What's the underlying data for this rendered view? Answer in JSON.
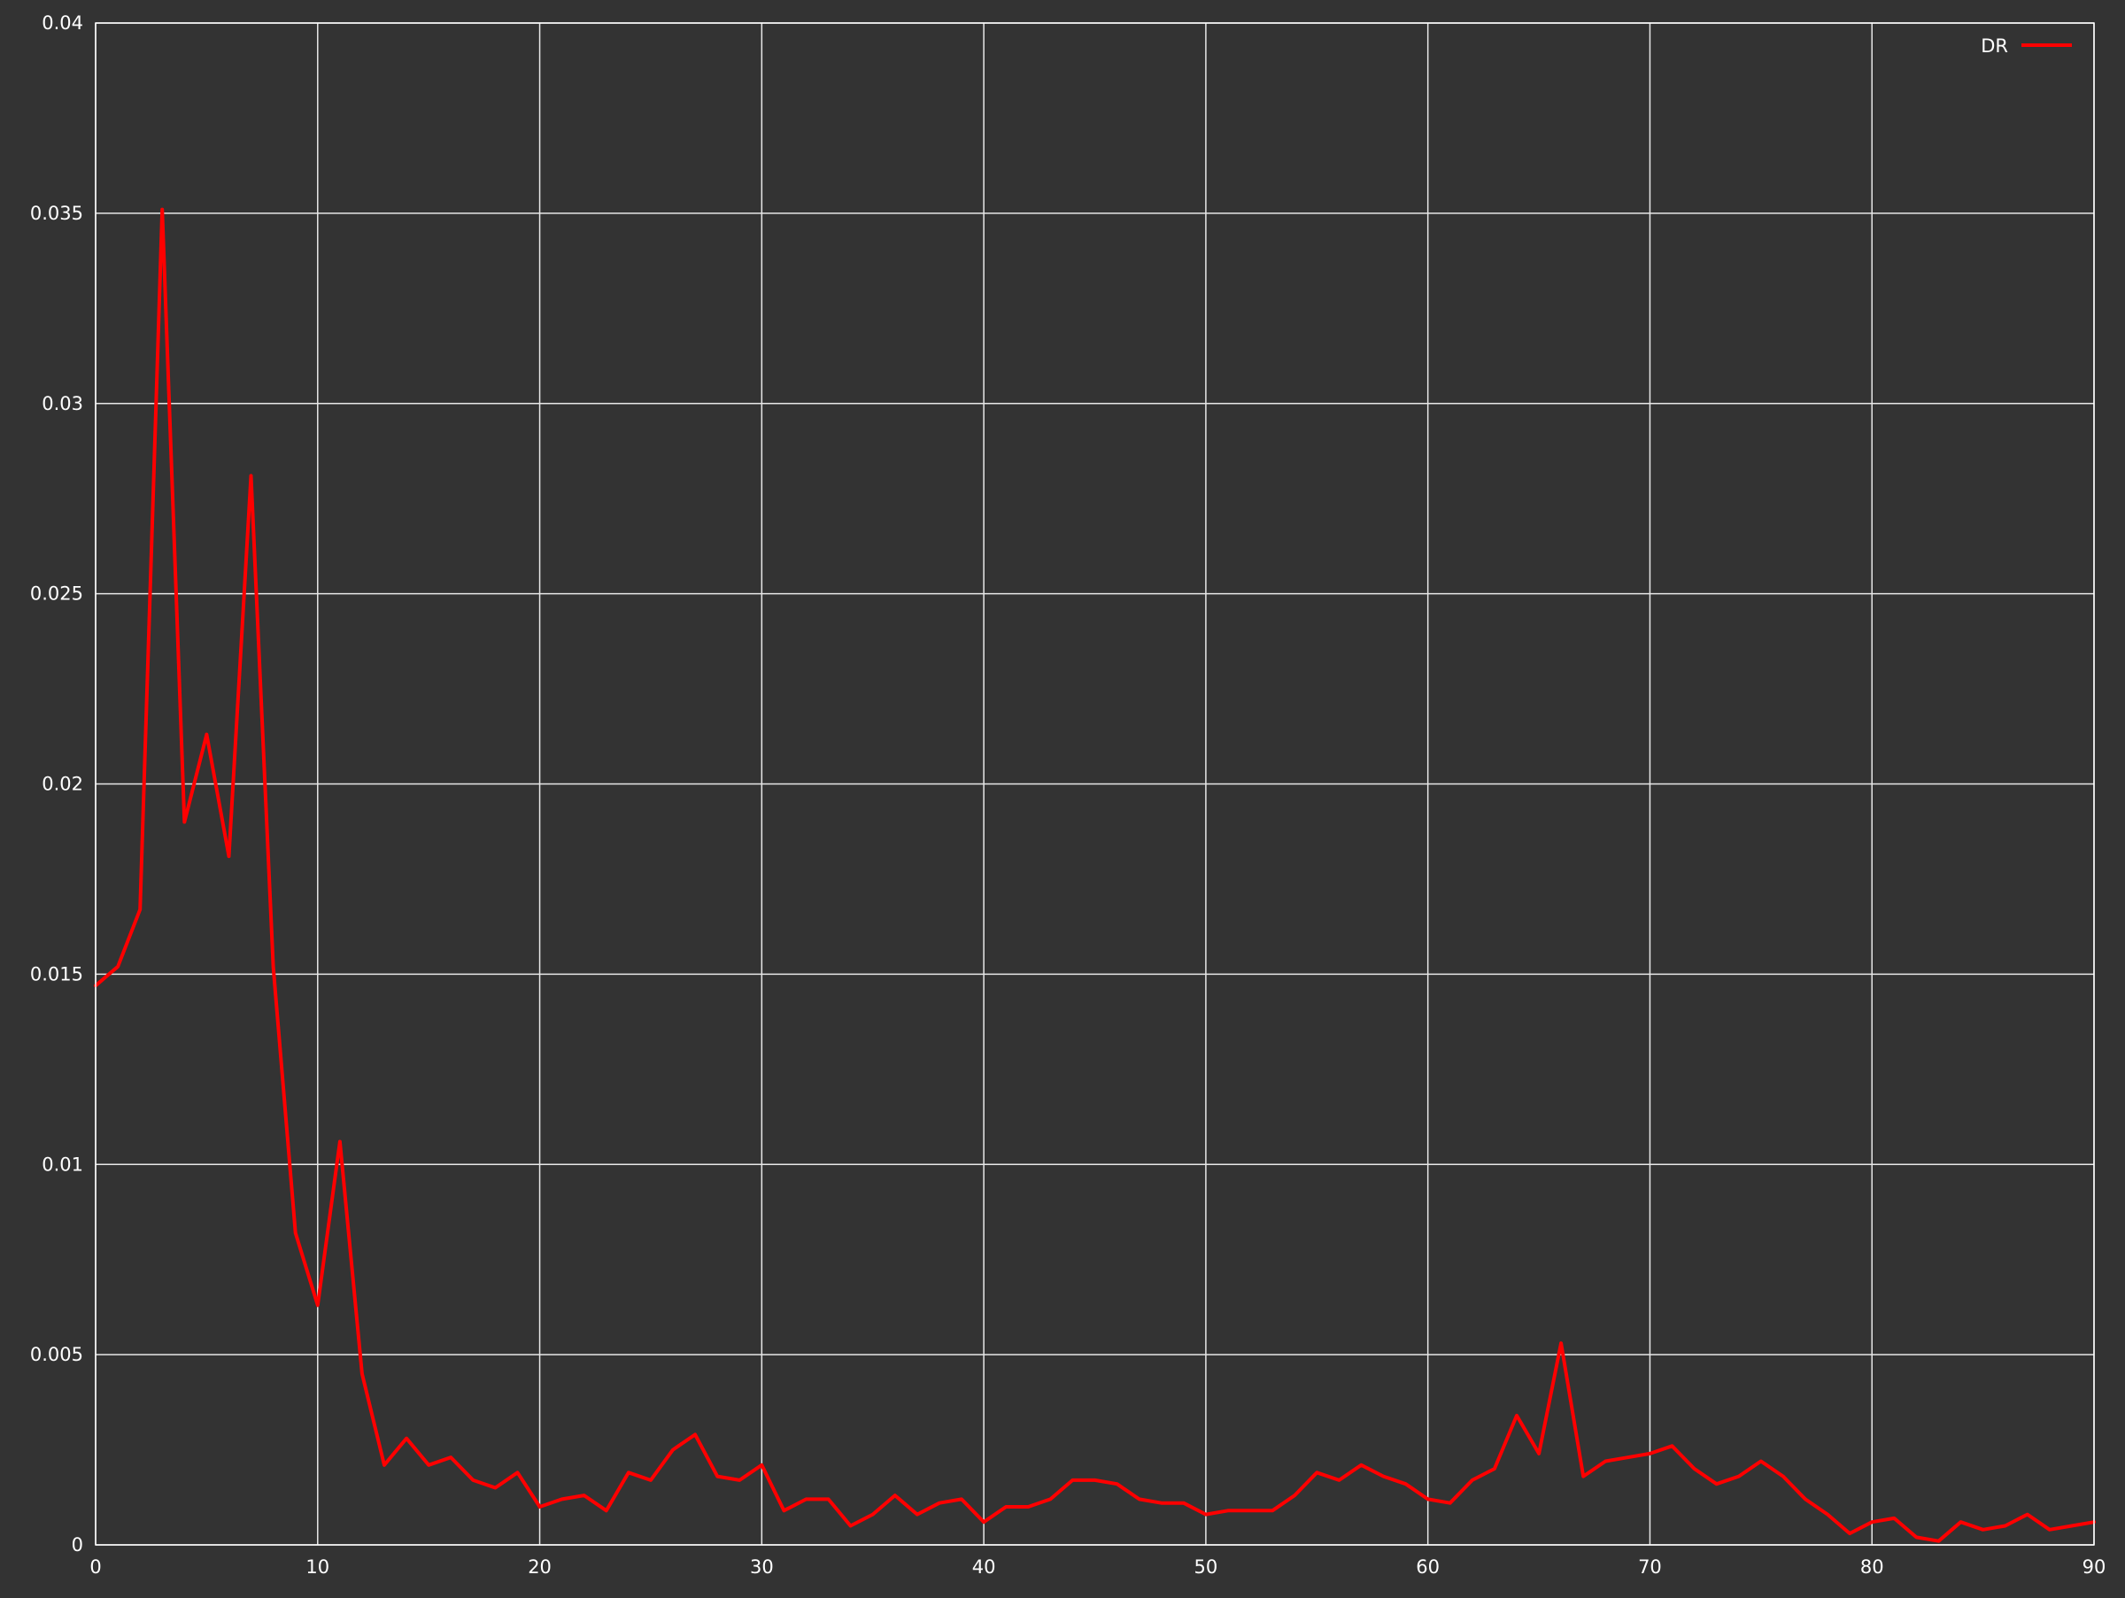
{
  "chart_data": {
    "type": "line",
    "xlim": [
      0,
      90
    ],
    "ylim": [
      0,
      0.04
    ],
    "x_ticks": [
      "0",
      "10",
      "20",
      "30",
      "40",
      "50",
      "60",
      "70",
      "80",
      "90"
    ],
    "x_tick_values": [
      0,
      10,
      20,
      30,
      40,
      50,
      60,
      70,
      80,
      90
    ],
    "y_ticks": [
      "0",
      "0.005",
      "0.01",
      "0.015",
      "0.02",
      "0.025",
      "0.03",
      "0.035",
      "0.04"
    ],
    "y_tick_values": [
      0,
      0.005,
      0.01,
      0.015,
      0.02,
      0.025,
      0.03,
      0.035,
      0.04
    ],
    "grid": true,
    "legend_position": "top-right",
    "background_color": "#333333",
    "series": [
      {
        "name": "DR",
        "color": "#ff0000",
        "x": [
          0,
          1,
          2,
          3,
          4,
          5,
          6,
          7,
          8,
          9,
          10,
          11,
          12,
          13,
          14,
          15,
          16,
          17,
          18,
          19,
          20,
          21,
          22,
          23,
          24,
          25,
          26,
          27,
          28,
          29,
          30,
          31,
          32,
          33,
          34,
          35,
          36,
          37,
          38,
          39,
          40,
          41,
          42,
          43,
          44,
          45,
          46,
          47,
          48,
          49,
          50,
          51,
          52,
          53,
          54,
          55,
          56,
          57,
          58,
          59,
          60,
          61,
          62,
          63,
          64,
          65,
          66,
          67,
          68,
          69,
          70,
          71,
          72,
          73,
          74,
          75,
          76,
          77,
          78,
          79,
          80,
          81,
          82,
          83,
          84,
          85,
          86,
          87,
          88,
          89,
          90
        ],
        "values": [
          0.0147,
          0.0152,
          0.0167,
          0.0351,
          0.019,
          0.0213,
          0.0181,
          0.0281,
          0.0152,
          0.0082,
          0.0063,
          0.0106,
          0.0045,
          0.0021,
          0.0028,
          0.0021,
          0.0023,
          0.0017,
          0.0015,
          0.0019,
          0.001,
          0.0012,
          0.0013,
          0.0009,
          0.0019,
          0.0017,
          0.0025,
          0.0029,
          0.0018,
          0.0017,
          0.0021,
          0.0009,
          0.0012,
          0.0012,
          0.0005,
          0.0008,
          0.0013,
          0.0008,
          0.0011,
          0.0012,
          0.0006,
          0.001,
          0.001,
          0.0012,
          0.0017,
          0.0017,
          0.0016,
          0.0012,
          0.0011,
          0.0011,
          0.0008,
          0.0009,
          0.0009,
          0.0009,
          0.0013,
          0.0019,
          0.0017,
          0.0021,
          0.0018,
          0.0016,
          0.0012,
          0.0011,
          0.0017,
          0.002,
          0.0034,
          0.0024,
          0.0053,
          0.0018,
          0.0022,
          0.0023,
          0.0024,
          0.0026,
          0.002,
          0.0016,
          0.0018,
          0.0022,
          0.0018,
          0.0012,
          0.0008,
          0.0003,
          0.0006,
          0.0007,
          0.0002,
          0.0001,
          0.0006,
          0.0004,
          0.0005,
          0.0008,
          0.0004,
          0.0005,
          0.0006
        ]
      }
    ]
  }
}
